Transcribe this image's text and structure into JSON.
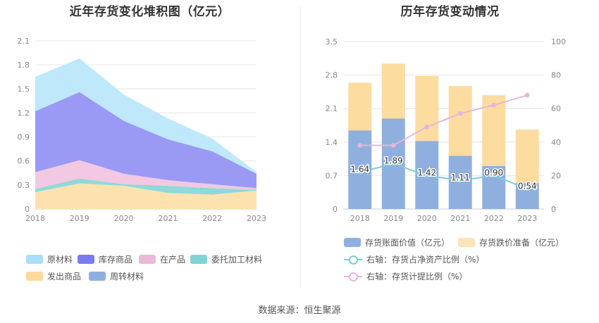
{
  "charts": [
    {
      "title": "近年存货变化堆积图（亿元）",
      "chart_data": {
        "type": "area",
        "stacked": true,
        "x": [
          "2018",
          "2019",
          "2020",
          "2021",
          "2022",
          "2023"
        ],
        "ylim": [
          0,
          2.1
        ],
        "yticks": [
          "0",
          "0.3",
          "0.6",
          "0.9",
          "1.2",
          "1.5",
          "1.8",
          "2.1"
        ],
        "grid": true,
        "legend_position": "bottom",
        "series": [
          {
            "name": "发出商品",
            "color": "#fde2b0",
            "values": [
              0.21,
              0.32,
              0.29,
              0.2,
              0.18,
              0.23
            ]
          },
          {
            "name": "委托加工材料",
            "color": "#8fd9d9",
            "values": [
              0.04,
              0.06,
              0.02,
              0.09,
              0.08,
              0.01
            ]
          },
          {
            "name": "在产品",
            "color": "#f2c8e2",
            "values": [
              0.21,
              0.23,
              0.13,
              0.07,
              0.05,
              0.02
            ]
          },
          {
            "name": "库存商品",
            "color": "#9a9af5",
            "values": [
              0.76,
              0.85,
              0.66,
              0.51,
              0.41,
              0.18
            ]
          },
          {
            "name": "原材料",
            "color": "#bfe8fb",
            "values": [
              0.43,
              0.42,
              0.33,
              0.26,
              0.16,
              0.02
            ]
          },
          {
            "name": "周转材料",
            "color": "#8fb0df",
            "values": [
              0,
              0,
              0,
              0,
              0,
              0
            ]
          }
        ]
      }
    },
    {
      "title": "历年存货变动情况",
      "chart_data": {
        "type": "bar",
        "stacked": true,
        "x": [
          "2018",
          "2019",
          "2020",
          "2021",
          "2022",
          "2023"
        ],
        "ylim": [
          0,
          3.5
        ],
        "yticks": [
          "0",
          "0.7",
          "1.4",
          "2.1",
          "2.8",
          "3.5"
        ],
        "y2lim": [
          0,
          100
        ],
        "y2ticks": [
          "0",
          "20",
          "40",
          "60",
          "80",
          "100"
        ],
        "grid": true,
        "legend_position": "bottom",
        "series": [
          {
            "name": "存货账面价值（亿元）",
            "type": "bar",
            "color": "#8fb0df",
            "values": [
              1.64,
              1.89,
              1.42,
              1.11,
              0.9,
              0.54
            ],
            "labels": [
              "1.64",
              "1.89",
              "1.42",
              "1.11",
              "0.90",
              "0.54"
            ]
          },
          {
            "name": "存货跌价准备（亿元）",
            "type": "bar",
            "color": "#fddca0",
            "values": [
              1.0,
              1.15,
              1.36,
              1.46,
              1.48,
              1.12
            ]
          },
          {
            "name": "右轴：存货占净资产比例（%）",
            "type": "line",
            "axis": "right",
            "color": "#7ccfd6",
            "values": [
              22,
              27,
              20,
              17,
              20,
              12
            ]
          },
          {
            "name": "右轴：存货计提比例（%）",
            "type": "line",
            "axis": "right",
            "color": "#e8b4dc",
            "values": [
              38,
              38,
              49,
              57,
              62,
              68
            ]
          }
        ]
      }
    }
  ],
  "legend_left": [
    "原材料",
    "库存商品",
    "在产品",
    "委托加工材料",
    "发出商品",
    "周转材料"
  ],
  "source": "数据来源：恒生聚源"
}
